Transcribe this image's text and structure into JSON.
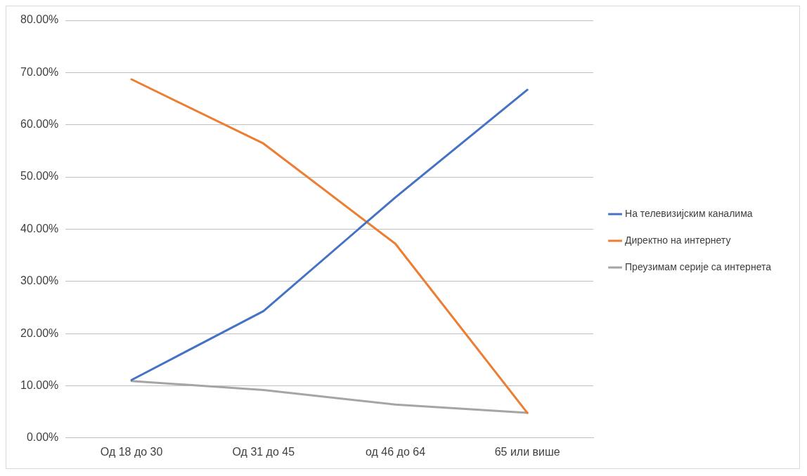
{
  "chart_data": {
    "type": "line",
    "categories": [
      "Од 18 до 30",
      "Од 31 до 45",
      "од 46 до 64",
      "65 или више"
    ],
    "series": [
      {
        "name": "На телевизијским каналима",
        "color": "#4472c4",
        "values": [
          11.1,
          24.3,
          46.1,
          66.7
        ]
      },
      {
        "name": "Директно на интернету",
        "color": "#ed7d31",
        "values": [
          68.7,
          56.4,
          37.2,
          4.8
        ]
      },
      {
        "name": "Преузимам серије са интернета",
        "color": "#a5a5a5",
        "values": [
          10.9,
          9.2,
          6.4,
          4.8
        ]
      }
    ],
    "ylim": [
      0,
      80
    ],
    "yticks": [
      {
        "value": 0,
        "label": "0.00%"
      },
      {
        "value": 10,
        "label": "10.00%"
      },
      {
        "value": 20,
        "label": "20.00%"
      },
      {
        "value": 30,
        "label": "30.00%"
      },
      {
        "value": 40,
        "label": "40.00%"
      },
      {
        "value": 50,
        "label": "50.00%"
      },
      {
        "value": 60,
        "label": "60.00%"
      },
      {
        "value": 70,
        "label": "70.00%"
      },
      {
        "value": 80,
        "label": "80.00%"
      }
    ],
    "grid": "y",
    "legend": "right",
    "marker": "none",
    "line_style": "solid"
  }
}
